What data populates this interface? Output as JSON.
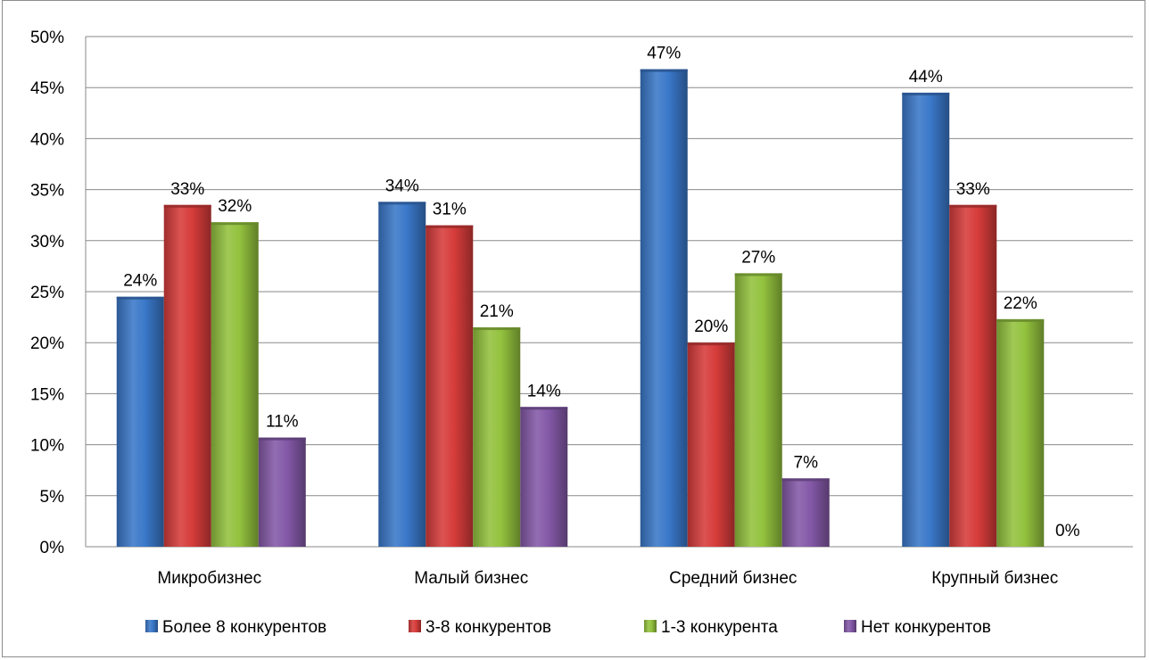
{
  "chart_data": {
    "type": "bar",
    "categories": [
      "Микробизнес",
      "Малый бизнес",
      "Средний бизнес",
      "Крупный бизнес"
    ],
    "series": [
      {
        "name": "Более 8 конкурентов",
        "values": [
          24.5,
          33.8,
          46.8,
          44.5
        ],
        "labels": [
          "24%",
          "34%",
          "47%",
          "44%"
        ],
        "color": "#3a78c9"
      },
      {
        "name": "3-8 конкурентов",
        "values": [
          33.5,
          31.5,
          20.0,
          33.5
        ],
        "labels": [
          "33%",
          "31%",
          "20%",
          "33%"
        ],
        "color": "#d63c3a"
      },
      {
        "name": "1-3 конкурента",
        "values": [
          31.8,
          21.5,
          26.8,
          22.3
        ],
        "labels": [
          "32%",
          "21%",
          "27%",
          "22%"
        ],
        "color": "#93c23e"
      },
      {
        "name": "Нет конкурентов",
        "values": [
          10.7,
          13.7,
          6.7,
          0
        ],
        "labels": [
          "11%",
          "14%",
          "7%",
          "0%"
        ],
        "color": "#8459a8"
      }
    ],
    "yticks": [
      "0%",
      "5%",
      "10%",
      "15%",
      "20%",
      "25%",
      "30%",
      "35%",
      "40%",
      "45%",
      "50%"
    ],
    "ylim": [
      0,
      50
    ],
    "grid": true,
    "legend_position": "bottom"
  }
}
